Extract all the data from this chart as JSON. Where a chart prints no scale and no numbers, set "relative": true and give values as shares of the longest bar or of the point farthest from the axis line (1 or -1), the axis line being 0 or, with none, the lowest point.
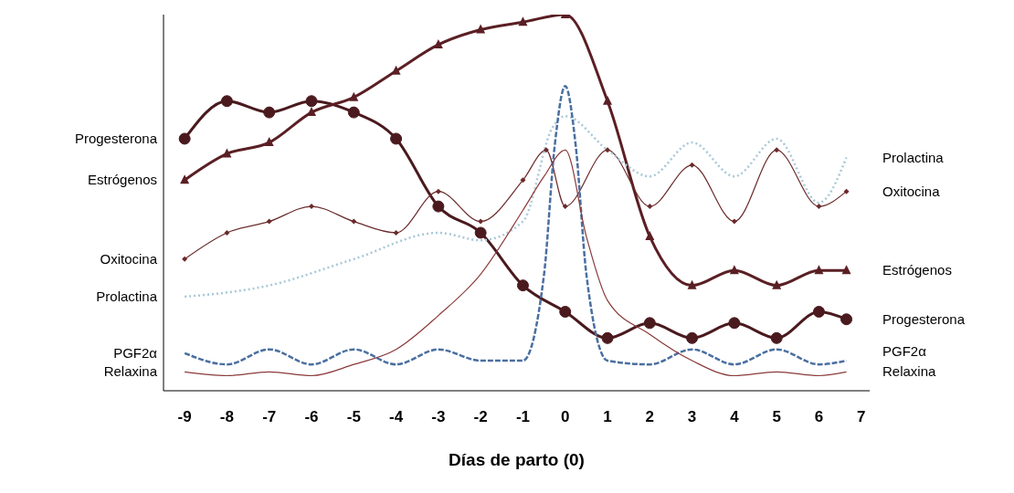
{
  "chart_data": {
    "type": "line",
    "relative": true,
    "xlabel": "Días de parto (0)",
    "xlim": [
      -9.5,
      7.2
    ],
    "xticks": [
      -9,
      -8,
      -7,
      -6,
      -5,
      -4,
      -3,
      -2,
      -1,
      0,
      1,
      2,
      3,
      4,
      5,
      6,
      7
    ],
    "grid": false,
    "legend": false,
    "series": [
      {
        "name": "Progesterona",
        "color": "#4a1a1e",
        "marker": "circle",
        "line_style": "solid",
        "x": [
          -9,
          -8,
          -7,
          -6,
          -5,
          -4,
          -3,
          -2,
          -1,
          0,
          1,
          2,
          3,
          4,
          5,
          6,
          6.65
        ],
        "values": [
          0.67,
          0.77,
          0.74,
          0.77,
          0.74,
          0.67,
          0.49,
          0.42,
          0.28,
          0.21,
          0.14,
          0.18,
          0.14,
          0.18,
          0.14,
          0.21,
          0.19
        ]
      },
      {
        "name": "Estrógenos",
        "color": "#5a1f24",
        "marker": "triangle",
        "line_style": "solid",
        "x": [
          -9,
          -8,
          -7,
          -6,
          -5,
          -4,
          -3,
          -2,
          -1,
          0,
          1,
          2,
          3,
          4,
          5,
          6,
          6.65
        ],
        "values": [
          0.56,
          0.63,
          0.66,
          0.74,
          0.78,
          0.85,
          0.92,
          0.96,
          0.98,
          1,
          0.77,
          0.41,
          0.28,
          0.32,
          0.28,
          0.32,
          0.32
        ]
      },
      {
        "name": "Oxitocina",
        "color": "#6b2a2a",
        "marker": "diamond",
        "line_style": "solid",
        "x": [
          -9,
          -8,
          -7,
          -6,
          -5,
          -4,
          -3,
          -2,
          -1,
          -0.45,
          0,
          1,
          2,
          3,
          4,
          5,
          6,
          6.65
        ],
        "values": [
          0.35,
          0.42,
          0.45,
          0.49,
          0.45,
          0.42,
          0.53,
          0.45,
          0.56,
          0.64,
          0.49,
          0.64,
          0.49,
          0.6,
          0.45,
          0.64,
          0.49,
          0.53
        ]
      },
      {
        "name": "Prolactina",
        "color": "#a8c8d8",
        "marker": "none",
        "line_style": "dotted",
        "x": [
          -9,
          -7,
          -5,
          -3,
          -2,
          -1,
          -0.3,
          0,
          1,
          2,
          3,
          4,
          5,
          6,
          6.65
        ],
        "values": [
          0.25,
          0.28,
          0.35,
          0.42,
          0.4,
          0.45,
          0.7,
          0.73,
          0.64,
          0.57,
          0.66,
          0.57,
          0.67,
          0.5,
          0.62
        ]
      },
      {
        "name": "PGF2α",
        "color": "#4a6fa0",
        "marker": "none",
        "line_style": "dashed",
        "x": [
          -9,
          -8,
          -7,
          -6,
          -5,
          -4,
          -3,
          -2,
          -1,
          -0.5,
          -0.25,
          0,
          0.25,
          0.5,
          1,
          2,
          3,
          4,
          5,
          6,
          6.65
        ],
        "values": [
          0.1,
          0.07,
          0.11,
          0.07,
          0.11,
          0.07,
          0.11,
          0.08,
          0.08,
          0.31,
          0.65,
          0.81,
          0.65,
          0.31,
          0.08,
          0.07,
          0.11,
          0.07,
          0.11,
          0.07,
          0.08
        ]
      },
      {
        "name": "Relaxina",
        "color": "#8b3a3a",
        "marker": "none",
        "line_style": "solid",
        "x": [
          -9,
          -8,
          -7,
          -6,
          -5,
          -4,
          -3,
          -2,
          -1,
          -0.5,
          0,
          0.5,
          1,
          2,
          3,
          4,
          5,
          6,
          6.65
        ],
        "values": [
          0.05,
          0.04,
          0.05,
          0.04,
          0.07,
          0.11,
          0.2,
          0.31,
          0.48,
          0.57,
          0.64,
          0.41,
          0.24,
          0.15,
          0.08,
          0.04,
          0.05,
          0.04,
          0.05
        ]
      }
    ]
  }
}
